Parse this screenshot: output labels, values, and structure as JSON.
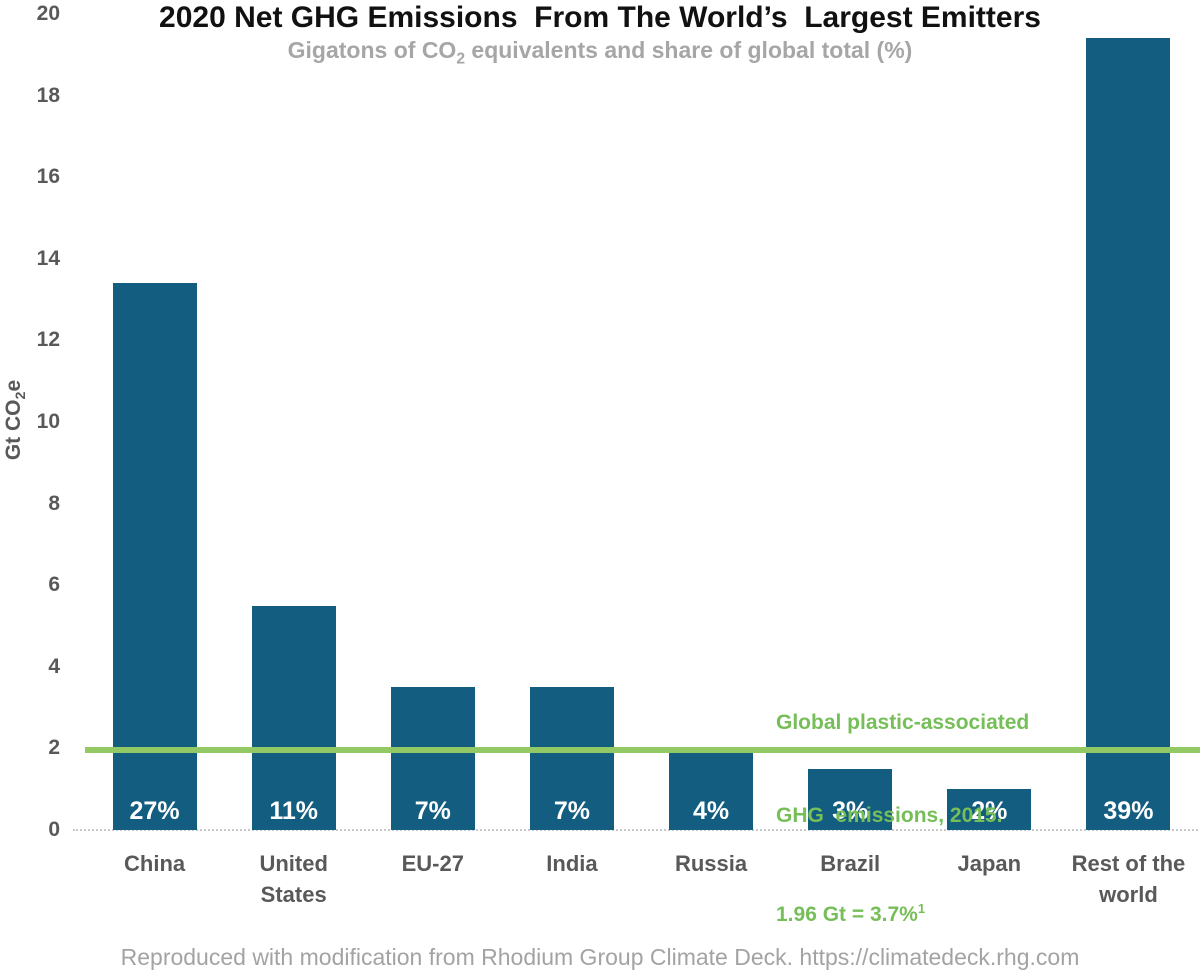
{
  "page": {
    "footer": "Reproduced with modification from Rhodium Group Climate Deck. https://climatedeck.rhg.com"
  },
  "chart_data": {
    "type": "bar",
    "title": "2020 Net GHG Emissions  From The World’s  Largest Emitters",
    "subtitle": "Gigatons of CO2 equivalents and share of global total (%)",
    "subtitle_parts": {
      "pre": "Gigatons of CO",
      "sub": "2",
      "post": " equivalents and share of global total (%)"
    },
    "ylabel": "Gt CO2e",
    "ylabel_parts": {
      "pre": "Gt CO",
      "sub": "2",
      "post": "e"
    },
    "ylim": [
      0,
      20
    ],
    "ytick_step": 2,
    "yticks": [
      20,
      18,
      16,
      14,
      12,
      10,
      8,
      6,
      4,
      2,
      0
    ],
    "categories": [
      "China",
      "United States",
      "EU-27",
      "India",
      "Russia",
      "Brazil",
      "Japan",
      "Rest of the world"
    ],
    "values": [
      13.4,
      5.5,
      3.5,
      3.5,
      1.9,
      1.5,
      1.0,
      19.4
    ],
    "share_labels": [
      "27%",
      "11%",
      "7%",
      "7%",
      "4%",
      "3%",
      "2%",
      "39%"
    ],
    "reference_line": {
      "value": 1.96
    },
    "annotation": {
      "line1": "Global plastic-associated",
      "line2": "GHG  emissions, 2015.",
      "line3": "1.96 Gt = 3.7%",
      "line3_sup": "1"
    },
    "legend": "none",
    "grid": "dotted baseline only",
    "colors": {
      "bar": "#135D81",
      "reference_line": "#92C964",
      "annotation_text": "#76BF58",
      "axis_text": "#595959",
      "subtitle_text": "#A6A6A6",
      "share_label_text": "#FFFFFF",
      "title_text": "#111111",
      "footer_text": "#A3A3A3"
    }
  }
}
